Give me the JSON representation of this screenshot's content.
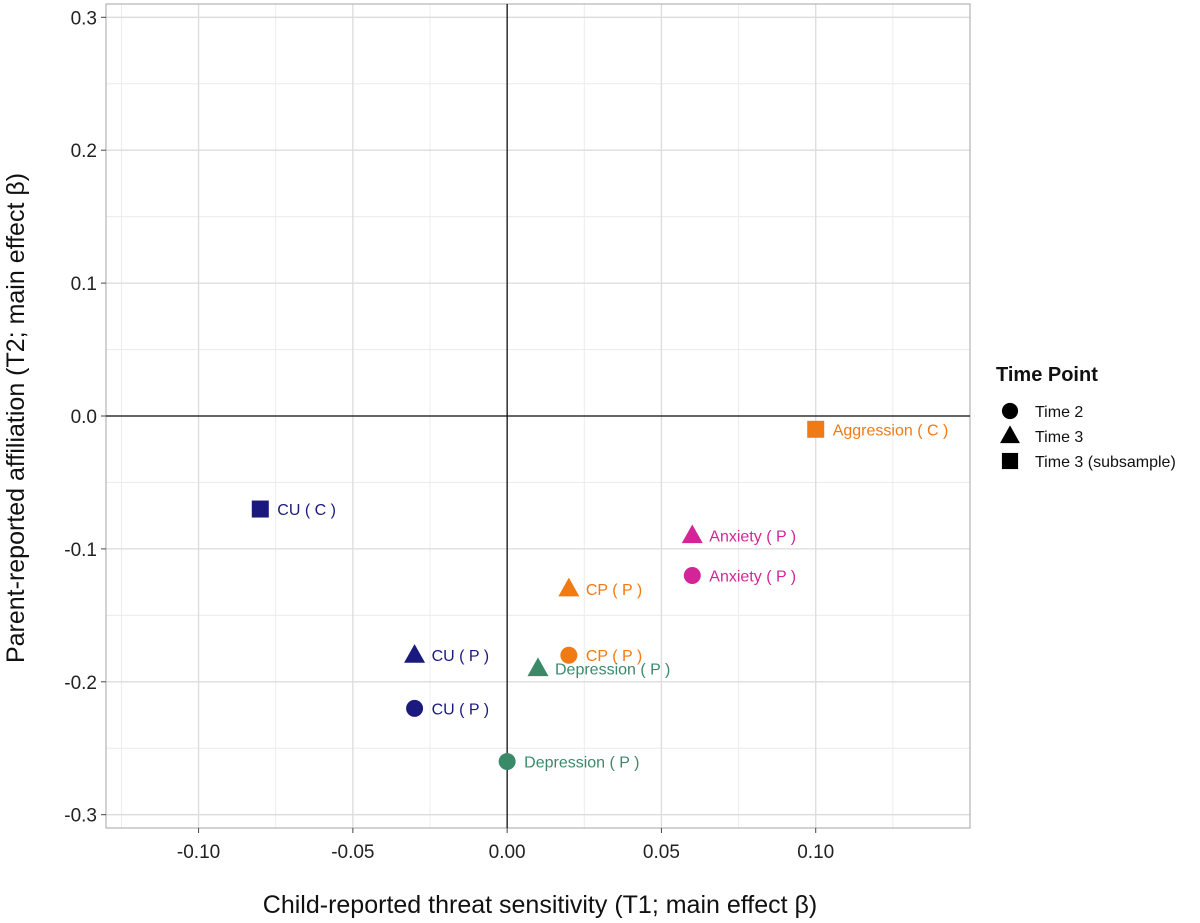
{
  "chart_data": {
    "type": "scatter",
    "xlabel": "Child-reported threat sensitivity (T1; main effect β)",
    "ylabel": "Parent-reported affiliation (T2; main effect β)",
    "xlim": [
      -0.13,
      0.15
    ],
    "ylim": [
      -0.31,
      0.31
    ],
    "x_ticks": [
      -0.1,
      -0.05,
      0.0,
      0.05,
      0.1
    ],
    "x_tick_labels": [
      "-0.10",
      "-0.05",
      "0.00",
      "0.05",
      "0.10"
    ],
    "y_ticks": [
      -0.3,
      -0.2,
      -0.1,
      0.0,
      0.1,
      0.2,
      0.3
    ],
    "y_tick_labels": [
      "-0.3",
      "-0.2",
      "-0.1",
      "0.0",
      "0.1",
      "0.2",
      "0.3"
    ],
    "grid": true,
    "reference_lines": {
      "x": 0.0,
      "y": 0.0
    },
    "legend": {
      "title": "Time Point",
      "placement": "right",
      "entries": [
        {
          "shape": "circle",
          "label": "Time 2"
        },
        {
          "shape": "triangle",
          "label": "Time 3"
        },
        {
          "shape": "square",
          "label": "Time 3 (subsample)"
        }
      ]
    },
    "colors": {
      "CU": "#1a1a7e",
      "CP": "#f07a14",
      "Aggression": "#f07a14",
      "Anxiety": "#d42598",
      "Depression": "#3a8a6a"
    },
    "points": [
      {
        "x": 0.1,
        "y": -0.01,
        "shape": "square",
        "label": "Aggression ( C )",
        "group": "Aggression"
      },
      {
        "x": -0.08,
        "y": -0.07,
        "shape": "square",
        "label": "CU ( C )",
        "group": "CU"
      },
      {
        "x": 0.06,
        "y": -0.09,
        "shape": "triangle",
        "label": "Anxiety ( P )",
        "group": "Anxiety"
      },
      {
        "x": 0.06,
        "y": -0.12,
        "shape": "circle",
        "label": "Anxiety ( P )",
        "group": "Anxiety"
      },
      {
        "x": 0.02,
        "y": -0.13,
        "shape": "triangle",
        "label": "CP ( P )",
        "group": "CP"
      },
      {
        "x": -0.03,
        "y": -0.18,
        "shape": "triangle",
        "label": "CU ( P )",
        "group": "CU"
      },
      {
        "x": 0.02,
        "y": -0.18,
        "shape": "circle",
        "label": "CP ( P )",
        "group": "CP"
      },
      {
        "x": 0.01,
        "y": -0.19,
        "shape": "triangle",
        "label": "Depression ( P )",
        "group": "Depression"
      },
      {
        "x": -0.03,
        "y": -0.22,
        "shape": "circle",
        "label": "CU ( P )",
        "group": "CU"
      },
      {
        "x": 0.0,
        "y": -0.26,
        "shape": "circle",
        "label": "Depression ( P )",
        "group": "Depression"
      }
    ]
  }
}
